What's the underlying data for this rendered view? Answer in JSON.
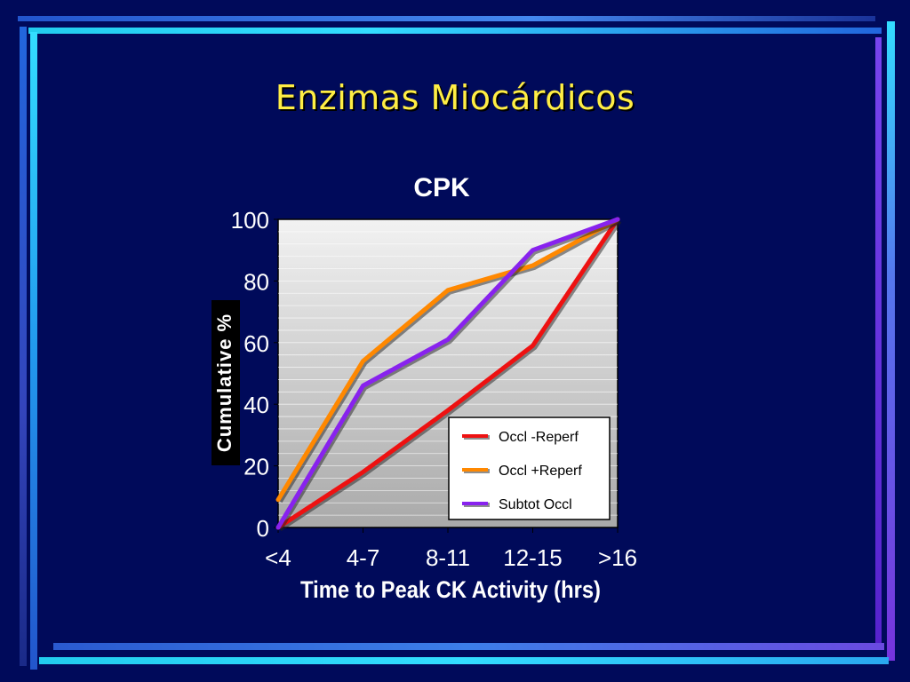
{
  "slide": {
    "title": "Enzimas Miocárdicos",
    "colors": {
      "background": "#000a5a",
      "title": "#ffee44"
    }
  },
  "chart_data": {
    "type": "line",
    "title": "CPK",
    "xlabel": "Time to Peak CK Activity (hrs)",
    "ylabel": "Cumulative %",
    "categories": [
      "<4",
      "4-7",
      "8-11",
      "12-15",
      ">16"
    ],
    "ylim": [
      0,
      100
    ],
    "yticks": [
      0,
      20,
      40,
      60,
      80,
      100
    ],
    "grid": true,
    "legend_position": "bottom-right",
    "series": [
      {
        "name": "Occl -Reperf",
        "color": "#ee1111",
        "values": [
          0,
          18,
          38,
          59,
          100
        ]
      },
      {
        "name": "Occl +Reperf",
        "color": "#ff8800",
        "values": [
          9,
          54,
          77,
          85,
          100
        ]
      },
      {
        "name": "Subtot Occl",
        "color": "#8822ee",
        "values": [
          0,
          46,
          61,
          90,
          100
        ]
      }
    ]
  }
}
